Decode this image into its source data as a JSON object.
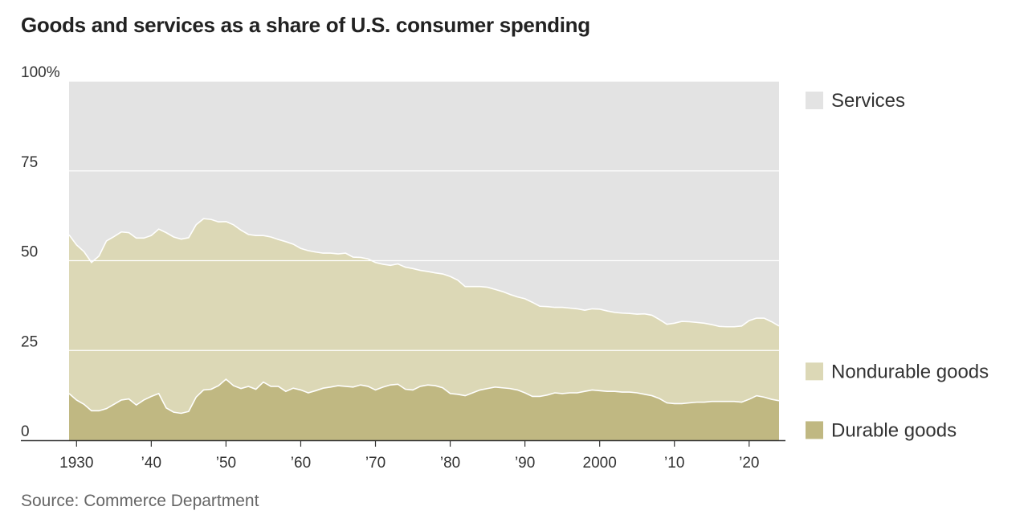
{
  "title": "Goods and services as a share of U.S. consumer spending",
  "source": "Source: Commerce Department",
  "colors": {
    "services": "#e3e3e3",
    "nondurable": "#dcd8b6",
    "durable": "#c0b882",
    "gridline": "#ffffff",
    "axis": "#333333"
  },
  "chart_data": {
    "type": "area",
    "stacked": true,
    "title": "Goods and services as a share of U.S. consumer spending",
    "xlabel": "",
    "ylabel": "",
    "xlim": [
      1929,
      2024
    ],
    "ylim": [
      0,
      100
    ],
    "grid": true,
    "y_ticks": [
      {
        "value": 100,
        "label": "100%"
      },
      {
        "value": 75,
        "label": "75"
      },
      {
        "value": 50,
        "label": "50"
      },
      {
        "value": 25,
        "label": "25"
      },
      {
        "value": 0,
        "label": "0"
      }
    ],
    "x_ticks": [
      {
        "value": 1930,
        "label": "1930"
      },
      {
        "value": 1940,
        "label": "’40"
      },
      {
        "value": 1950,
        "label": "’50"
      },
      {
        "value": 1960,
        "label": "’60"
      },
      {
        "value": 1970,
        "label": "’70"
      },
      {
        "value": 1980,
        "label": "’80"
      },
      {
        "value": 1990,
        "label": "’90"
      },
      {
        "value": 2000,
        "label": "2000"
      },
      {
        "value": 2010,
        "label": "’10"
      },
      {
        "value": 2020,
        "label": "’20"
      }
    ],
    "x": [
      1929,
      1930,
      1931,
      1932,
      1933,
      1934,
      1935,
      1936,
      1937,
      1938,
      1939,
      1940,
      1941,
      1942,
      1943,
      1944,
      1945,
      1946,
      1947,
      1948,
      1949,
      1950,
      1951,
      1952,
      1953,
      1954,
      1955,
      1956,
      1957,
      1958,
      1959,
      1960,
      1961,
      1962,
      1963,
      1964,
      1965,
      1966,
      1967,
      1968,
      1969,
      1970,
      1971,
      1972,
      1973,
      1974,
      1975,
      1976,
      1977,
      1978,
      1979,
      1980,
      1981,
      1982,
      1983,
      1984,
      1985,
      1986,
      1987,
      1988,
      1989,
      1990,
      1991,
      1992,
      1993,
      1994,
      1995,
      1996,
      1997,
      1998,
      1999,
      2000,
      2001,
      2002,
      2003,
      2004,
      2005,
      2006,
      2007,
      2008,
      2009,
      2010,
      2011,
      2012,
      2013,
      2014,
      2015,
      2016,
      2017,
      2018,
      2019,
      2020,
      2021,
      2022,
      2023,
      2024
    ],
    "series": [
      {
        "name": "Durable goods",
        "values": [
          13.0,
          11.2,
          10.0,
          8.2,
          8.2,
          8.8,
          10.0,
          11.2,
          11.5,
          9.8,
          11.2,
          12.2,
          13.0,
          9.0,
          7.8,
          7.5,
          8.0,
          12.0,
          14.0,
          14.2,
          15.2,
          17.0,
          15.2,
          14.4,
          15.0,
          14.2,
          16.2,
          15.0,
          15.0,
          13.6,
          14.5,
          14.0,
          13.2,
          13.8,
          14.5,
          14.8,
          15.2,
          15.0,
          14.8,
          15.4,
          15.0,
          14.0,
          14.8,
          15.4,
          15.6,
          14.2,
          14.0,
          15.0,
          15.4,
          15.2,
          14.6,
          13.0,
          12.8,
          12.4,
          13.2,
          14.0,
          14.4,
          14.8,
          14.6,
          14.4,
          14.0,
          13.2,
          12.2,
          12.2,
          12.6,
          13.2,
          13.0,
          13.2,
          13.2,
          13.6,
          14.0,
          13.8,
          13.6,
          13.6,
          13.4,
          13.4,
          13.2,
          12.8,
          12.4,
          11.6,
          10.4,
          10.2,
          10.2,
          10.4,
          10.6,
          10.6,
          10.8,
          10.8,
          10.8,
          10.8,
          10.6,
          11.4,
          12.4,
          12.0,
          11.4,
          11.0
        ]
      },
      {
        "name": "Nondurable goods",
        "values": [
          44.2,
          43.2,
          42.5,
          41.3,
          43.1,
          46.7,
          46.7,
          46.8,
          46.3,
          46.5,
          45.1,
          44.8,
          45.8,
          48.8,
          48.8,
          48.5,
          48.4,
          48.0,
          47.7,
          47.3,
          45.6,
          43.9,
          44.8,
          44.1,
          42.3,
          42.8,
          40.8,
          41.6,
          40.9,
          41.7,
          40.1,
          39.4,
          39.6,
          38.6,
          37.6,
          37.3,
          36.7,
          37.1,
          36.2,
          35.5,
          35.5,
          35.5,
          34.2,
          33.3,
          33.5,
          34.0,
          33.8,
          32.3,
          31.6,
          31.4,
          31.7,
          32.6,
          31.8,
          30.4,
          29.6,
          28.8,
          28.2,
          27.2,
          26.8,
          26.2,
          25.9,
          26.2,
          26.2,
          25.1,
          24.6,
          23.8,
          24.0,
          23.6,
          23.4,
          22.6,
          22.6,
          22.7,
          22.4,
          22.0,
          22.0,
          21.9,
          21.9,
          22.4,
          22.4,
          22.0,
          21.9,
          22.4,
          22.9,
          22.6,
          22.2,
          22.0,
          21.4,
          20.9,
          20.8,
          20.8,
          21.2,
          21.9,
          21.6,
          22.0,
          21.6,
          20.8
        ]
      },
      {
        "name": "Services",
        "values": [
          42.8,
          45.6,
          47.5,
          50.5,
          48.7,
          44.5,
          43.3,
          42.0,
          42.2,
          43.7,
          43.7,
          43.0,
          41.2,
          42.2,
          43.4,
          44.0,
          43.6,
          40.0,
          38.3,
          38.5,
          39.2,
          39.1,
          40.0,
          41.5,
          42.7,
          43.0,
          43.0,
          43.4,
          44.1,
          44.7,
          45.4,
          46.6,
          47.2,
          47.6,
          47.9,
          47.9,
          48.1,
          47.9,
          49.0,
          49.1,
          49.5,
          50.5,
          51.0,
          51.3,
          50.9,
          51.8,
          52.2,
          52.7,
          53.0,
          53.4,
          53.7,
          54.4,
          55.4,
          57.2,
          57.2,
          57.2,
          57.4,
          58.0,
          58.6,
          59.4,
          60.1,
          60.6,
          61.6,
          62.7,
          62.8,
          63.0,
          63.0,
          63.2,
          63.4,
          63.8,
          63.4,
          63.5,
          64.0,
          64.4,
          64.6,
          64.7,
          64.9,
          64.8,
          65.2,
          66.4,
          67.7,
          67.4,
          66.9,
          67.0,
          67.2,
          67.4,
          67.8,
          68.3,
          68.4,
          68.4,
          68.2,
          66.7,
          66.0,
          66.0,
          67.0,
          68.2
        ]
      }
    ],
    "legend": [
      "Services",
      "Nondurable goods",
      "Durable goods"
    ],
    "legend_position": "right"
  }
}
